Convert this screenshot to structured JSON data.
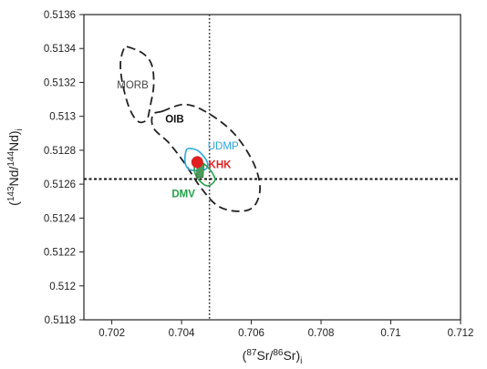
{
  "chart_data": {
    "type": "scatter",
    "title": "",
    "xlabel": {
      "prefix": "(",
      "sup1": "87",
      "mid": "Sr/",
      "sup2": "86",
      "tail": "Sr)",
      "sub": "i"
    },
    "ylabel": {
      "prefix": "(",
      "sup1": "143",
      "mid": "Nd/",
      "sup2": "144",
      "tail": "Nd)",
      "sub": "i"
    },
    "xlim": [
      0.7012,
      0.712
    ],
    "ylim": [
      0.5118,
      0.5136
    ],
    "xticks": [
      0.702,
      0.704,
      0.706,
      0.708,
      0.71,
      0.712
    ],
    "xtick_labels": [
      "0.702",
      "0.704",
      "0.706",
      "0.708",
      "0.71",
      "0.712"
    ],
    "yticks": [
      0.5118,
      0.512,
      0.5122,
      0.5124,
      0.5126,
      0.5128,
      0.513,
      0.5132,
      0.5134,
      0.5136
    ],
    "ytick_labels": [
      "0.5118",
      "0.512",
      "0.5122",
      "0.5124",
      "0.5126",
      "0.5128",
      "0.513",
      "0.5132",
      "0.5134",
      "0.5136"
    ],
    "reference_lines": {
      "bulk_earth_sr": 0.7048,
      "chur_nd": 0.51263
    },
    "fields": [
      {
        "name": "MORB",
        "style": "dashed",
        "color": "#222222",
        "points": [
          [
            0.70245,
            0.51341
          ],
          [
            0.7029,
            0.51337
          ],
          [
            0.70315,
            0.5133
          ],
          [
            0.7032,
            0.51318
          ],
          [
            0.7031,
            0.51306
          ],
          [
            0.703,
            0.51298
          ],
          [
            0.70275,
            0.51297
          ],
          [
            0.7025,
            0.51305
          ],
          [
            0.7023,
            0.5132
          ],
          [
            0.70225,
            0.51332
          ],
          [
            0.70235,
            0.5134
          ]
        ]
      },
      {
        "name": "OIB",
        "style": "dashed",
        "color": "#222222",
        "points": [
          [
            0.70345,
            0.51303
          ],
          [
            0.7041,
            0.51307
          ],
          [
            0.70475,
            0.51302
          ],
          [
            0.7055,
            0.5129
          ],
          [
            0.70605,
            0.51273
          ],
          [
            0.70625,
            0.51258
          ],
          [
            0.70608,
            0.51247
          ],
          [
            0.70565,
            0.51244
          ],
          [
            0.70505,
            0.51247
          ],
          [
            0.70455,
            0.51258
          ],
          [
            0.7041,
            0.51272
          ],
          [
            0.70365,
            0.51284
          ],
          [
            0.7032,
            0.51293
          ],
          [
            0.70318,
            0.51301
          ]
        ]
      },
      {
        "name": "UDMP",
        "style": "solid",
        "color": "#2aa7dc",
        "points": [
          [
            0.7042,
            0.51281
          ],
          [
            0.70445,
            0.5128
          ],
          [
            0.70465,
            0.51276
          ],
          [
            0.70475,
            0.51272
          ],
          [
            0.7047,
            0.51269
          ],
          [
            0.70445,
            0.51268
          ],
          [
            0.7042,
            0.51269
          ],
          [
            0.7041,
            0.51273
          ],
          [
            0.70412,
            0.51279
          ]
        ]
      },
      {
        "name": "DMV",
        "style": "solid",
        "color": "#24a24a",
        "points": [
          [
            0.70445,
            0.51274
          ],
          [
            0.7047,
            0.51271
          ],
          [
            0.7049,
            0.51266
          ],
          [
            0.70495,
            0.51262
          ],
          [
            0.70475,
            0.51259
          ],
          [
            0.70452,
            0.51262
          ],
          [
            0.70438,
            0.51267
          ],
          [
            0.70438,
            0.51272
          ]
        ]
      }
    ],
    "data_shapes": [
      {
        "name": "DMV samples",
        "marker": "square",
        "color": "#4a9a5a",
        "points": [
          [
            0.70445,
            0.51272
          ],
          [
            0.70465,
            0.51272
          ],
          [
            0.70462,
            0.51264
          ],
          [
            0.70442,
            0.51264
          ]
        ]
      }
    ],
    "series": [
      {
        "name": "KHK",
        "marker": "circle",
        "color": "#e02020",
        "x": [
          0.70445
        ],
        "y": [
          0.51273
        ]
      }
    ],
    "annotations": [
      {
        "text": "MORB",
        "x": 0.70305,
        "y": 0.51318,
        "anchor": "end",
        "color": "#444444"
      },
      {
        "text": "OIB",
        "x": 0.7038,
        "y": 0.51298,
        "anchor": "middle",
        "color": "#111111",
        "bold": true
      },
      {
        "text": "UDMP",
        "x": 0.70475,
        "y": 0.51282,
        "anchor": "start",
        "color": "#2aa7dc"
      },
      {
        "text": "KHK",
        "x": 0.70477,
        "y": 0.51271,
        "anchor": "start",
        "color": "#e02020",
        "bold": true
      },
      {
        "text": "DMV",
        "x": 0.70372,
        "y": 0.51254,
        "anchor": "start",
        "color": "#24a24a",
        "bold": true
      }
    ]
  }
}
